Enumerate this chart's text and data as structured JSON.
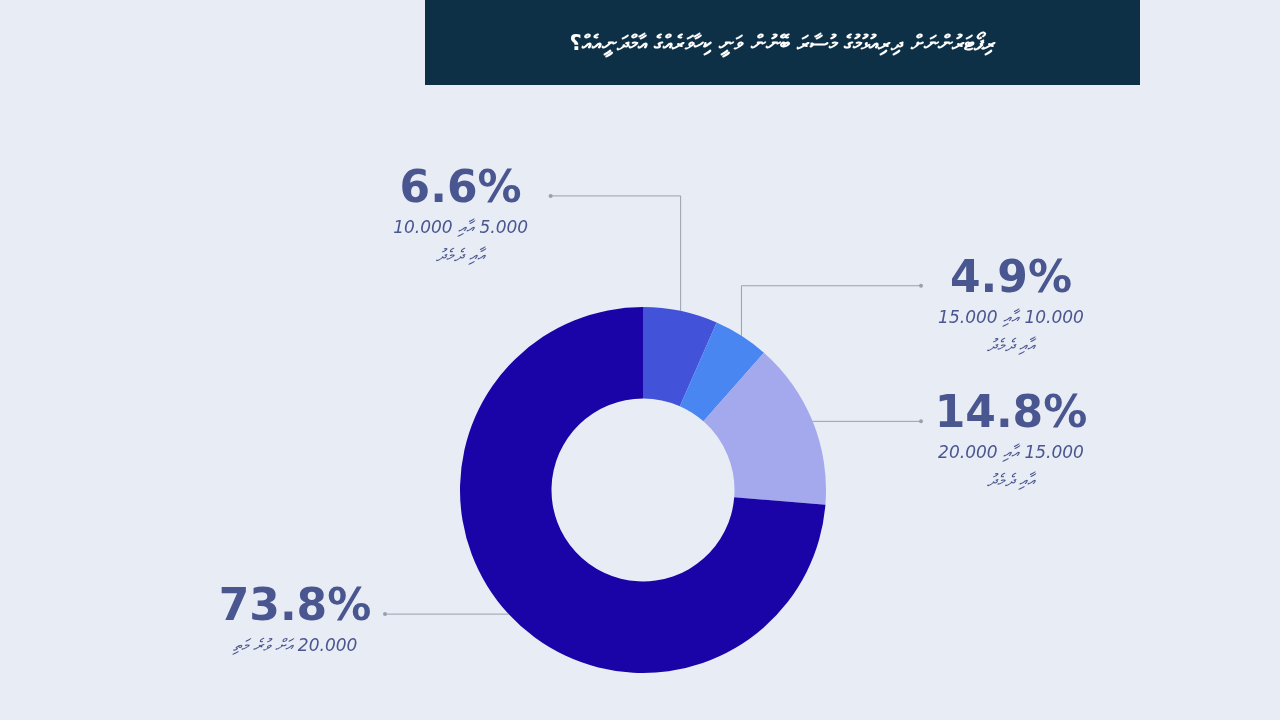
{
  "chart_data": {
    "type": "donut",
    "title": "ރިޕޯޓަރުންނަށް ދިރިއުޅުމުގެ މުސާރަ ބޭނުން ވަނީ ކިހާވަރެއްގެ އާމްދަނީއެއް؟",
    "categories": [
      "5.000 އާއި 10.000 އާއި ދެމެދު",
      "10.000 އާއި 15.000 އާއި ދެމެދު",
      "15.000 އާއި 20.000 އާއި ދެމެދު",
      "20.000 އަށް ވުރެ މަތި"
    ],
    "values": [
      6.6,
      4.9,
      14.8,
      73.8
    ],
    "colors": [
      "#4353d9",
      "#4a86f2",
      "#a3a9ec",
      "#1a04a7"
    ],
    "value_labels": [
      "6.6%",
      "4.9%",
      "14.8%",
      "73.8%"
    ],
    "legend": false
  }
}
